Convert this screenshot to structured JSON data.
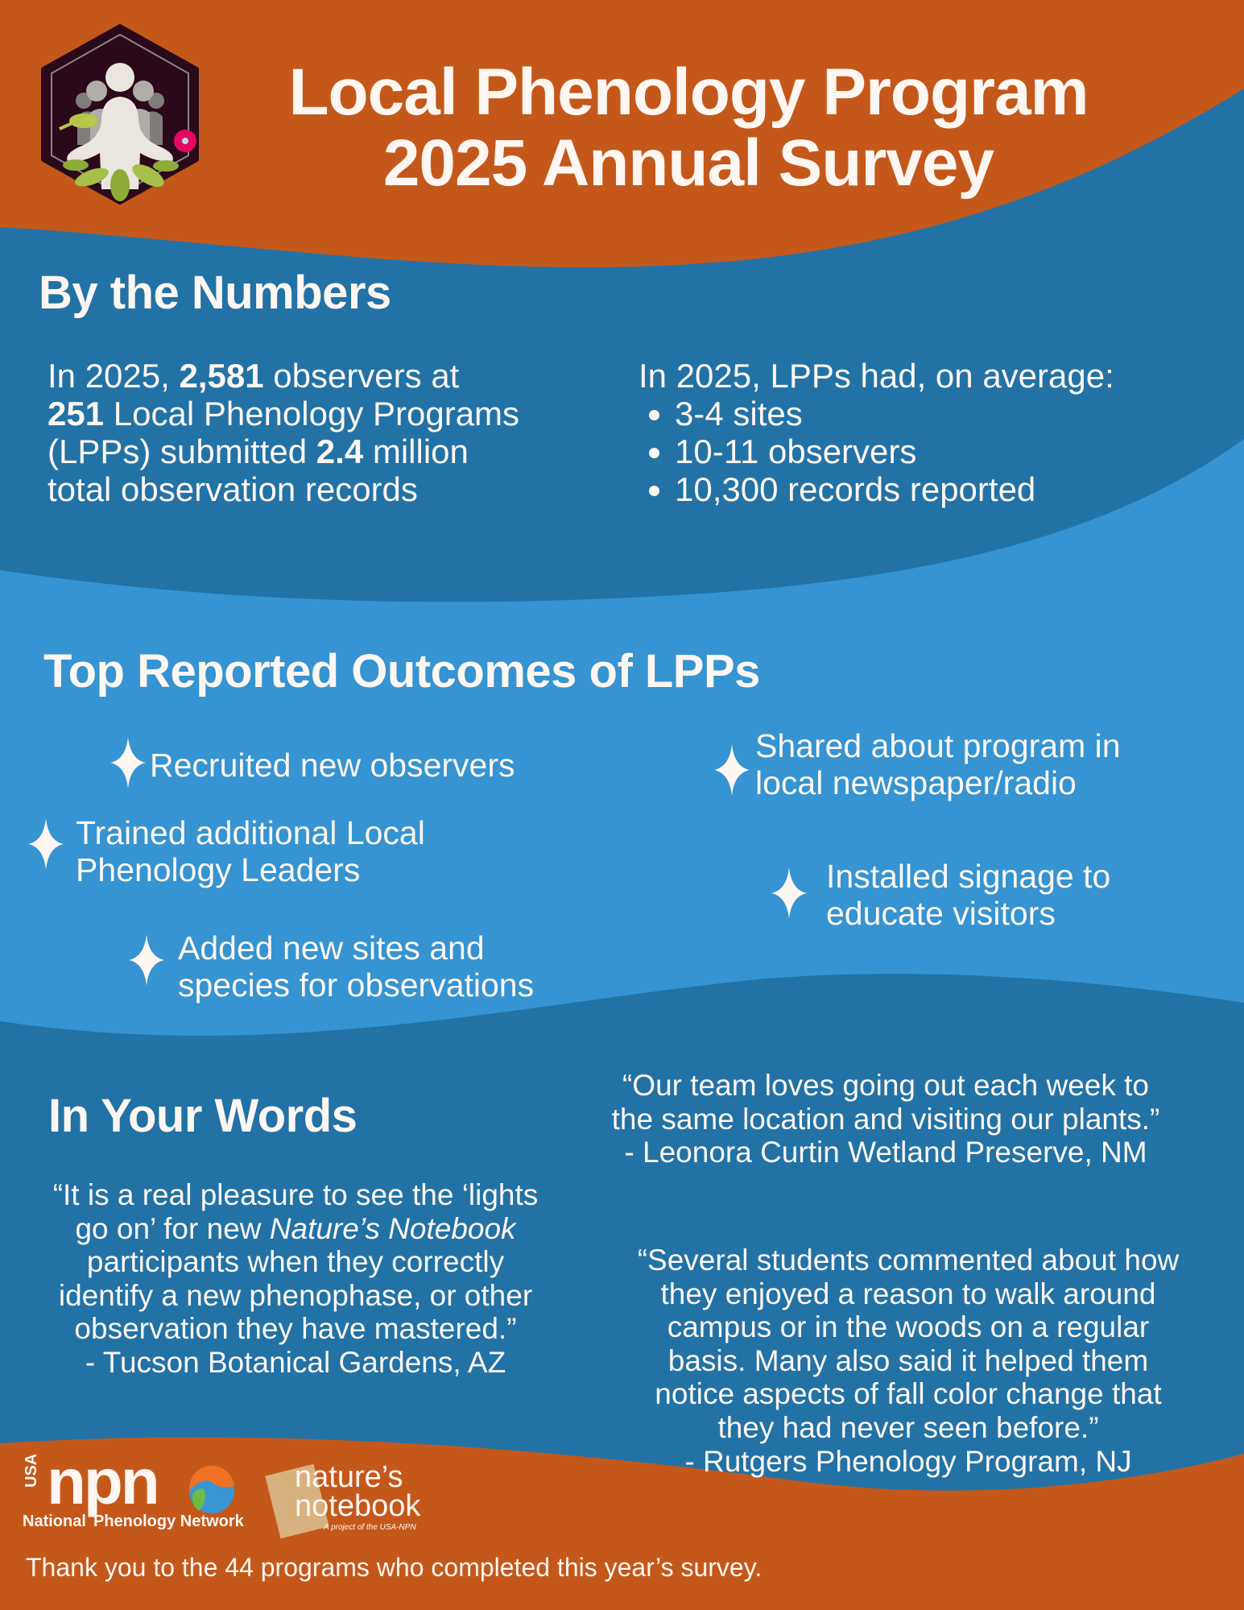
{
  "header": {
    "title_line1": "Local Phenology Program",
    "title_line2": "2025 Annual Survey",
    "logo_icon": "lpp-hexagon-logo-icon"
  },
  "colors": {
    "orange": "#c4581b",
    "dark_blue": "#2272a6",
    "light_blue": "#3594d1",
    "text": "#fdf6f1"
  },
  "numbers": {
    "heading": "By the Numbers",
    "left": {
      "l1_a": "In 2025, ",
      "l1_b": "2,581",
      "l1_c": " observers at",
      "l2_a": "251",
      "l2_b": " Local Phenology Programs",
      "l3_a": "(LPPs) submitted ",
      "l3_b": "2.4",
      "l3_c": " million",
      "l4": "total observation records"
    },
    "right": {
      "intro": "In 2025, LPPs had, on average:",
      "items": [
        "3-4 sites",
        "10-11 observers",
        "10,300 records reported"
      ]
    }
  },
  "outcomes": {
    "heading": "Top Reported Outcomes of LPPs",
    "items": [
      {
        "lines": [
          "Recruited new observers"
        ]
      },
      {
        "lines": [
          "Trained additional Local",
          "Phenology Leaders"
        ]
      },
      {
        "lines": [
          "Added new sites and",
          "species for observations"
        ]
      },
      {
        "lines": [
          "Shared about program in",
          "local newspaper/radio"
        ]
      },
      {
        "lines": [
          "Installed signage to",
          "educate visitors"
        ]
      }
    ]
  },
  "words": {
    "heading": "In Your Words",
    "quote1": {
      "l1": "“It is a real pleasure to see the ‘lights",
      "l2_a": "go on’ for new ",
      "l2_b": "Nature’s Notebook",
      "l3": "participants when they correctly",
      "l4": "identify a new phenophase, or other",
      "l5": "observation they have mastered.”",
      "source": "- Tucson Botanical Gardens, AZ"
    },
    "quote2": {
      "lines": [
        "“Our team loves going out each week to",
        "the same location and visiting our plants.”"
      ],
      "source": "- Leonora Curtin Wetland Preserve, NM"
    },
    "quote3": {
      "lines": [
        "“Several students commented about how",
        "they enjoyed a reason to walk around",
        "campus or in the woods on a regular",
        "basis. Many also said it helped them",
        "notice aspects of fall color change that",
        "they had never seen before.”"
      ],
      "source": "- Rutgers Phenology Program, NJ"
    }
  },
  "footer": {
    "npn_logo": {
      "usa": "USA",
      "npn": "npn",
      "name_a": "National",
      "name_b": "Phenology Network"
    },
    "nn_logo": {
      "l1": "nature’s",
      "l2": "notebook",
      "tagline": "A project of the USA-NPN"
    },
    "thanks": "Thank you to the 44 programs who completed this year’s survey."
  }
}
